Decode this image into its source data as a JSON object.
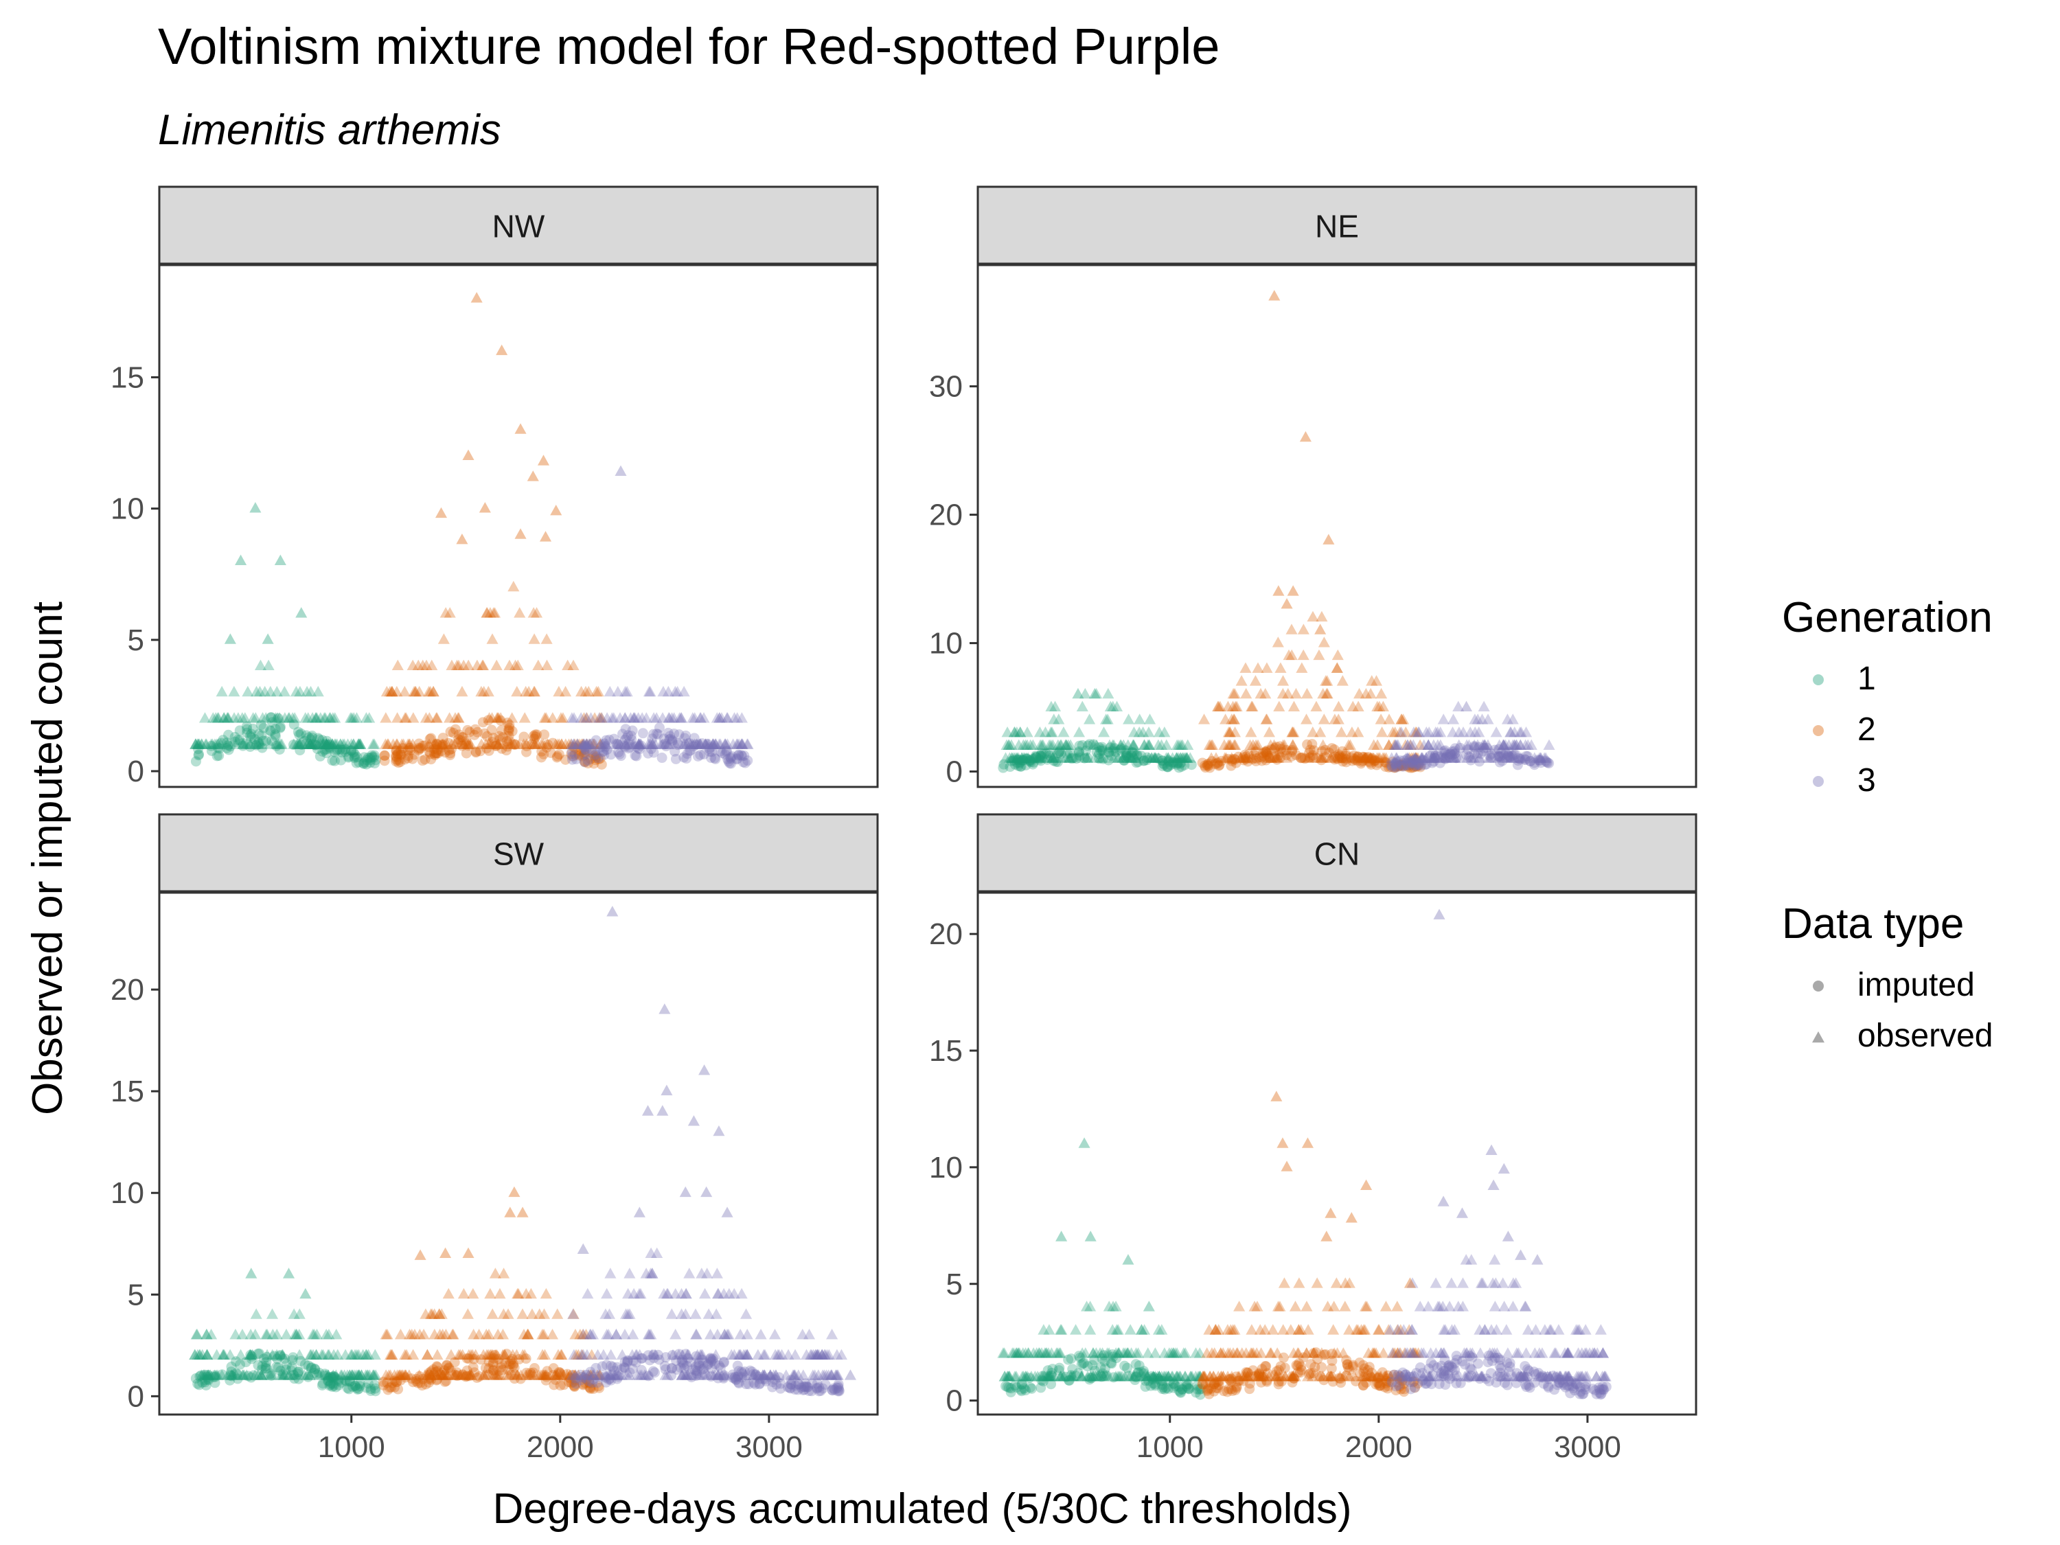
{
  "chart_data": {
    "type": "scatter",
    "title": "Voltinism mixture model for Red-spotted Purple",
    "subtitle": "Limenitis arthemis",
    "xlabel": "Degree-days accumulated (5/30C thresholds)",
    "ylabel": "Observed or imputed count",
    "xlim": [
      80,
      3520
    ],
    "x_ticks": [
      1000,
      2000,
      3000
    ],
    "grid": false,
    "legend_placement": "right",
    "legends": [
      {
        "title": "Generation",
        "entries": [
          {
            "label": "1",
            "color": "#1B9E77"
          },
          {
            "label": "2",
            "color": "#D95F02"
          },
          {
            "label": "3",
            "color": "#7570B3"
          }
        ]
      },
      {
        "title": "Data type",
        "entries": [
          {
            "label": "imputed",
            "shape": "circle"
          },
          {
            "label": "observed",
            "shape": "triangle"
          }
        ]
      }
    ],
    "panels": [
      {
        "name": "NW",
        "ylim": [
          -0.6,
          19.3
        ],
        "y_ticks": [
          0,
          5,
          10,
          15
        ],
        "generations": [
          {
            "gen": "1",
            "range": [
              250,
              1120
            ],
            "peak_x": 620,
            "sd": 200,
            "base": 1.1,
            "amp": 1.9,
            "spread": 0.9
          },
          {
            "gen": "2",
            "range": [
              1150,
              2200
            ],
            "peak_x": 1670,
            "sd": 250,
            "base": 1.0,
            "amp": 4.5,
            "spread": 2.0
          },
          {
            "gen": "3",
            "range": [
              2050,
              2900
            ],
            "peak_x": 2420,
            "sd": 220,
            "base": 0.8,
            "amp": 1.5,
            "spread": 0.8
          }
        ],
        "outliers": [
          {
            "x": 540,
            "y": 10,
            "gen": "1"
          },
          {
            "x": 470,
            "y": 8,
            "gen": "1"
          },
          {
            "x": 660,
            "y": 8,
            "gen": "1"
          },
          {
            "x": 760,
            "y": 6,
            "gen": "1"
          },
          {
            "x": 420,
            "y": 5,
            "gen": "1"
          },
          {
            "x": 600,
            "y": 5,
            "gen": "1"
          },
          {
            "x": 1600,
            "y": 18,
            "gen": "2"
          },
          {
            "x": 1720,
            "y": 16,
            "gen": "2"
          },
          {
            "x": 1810,
            "y": 13,
            "gen": "2"
          },
          {
            "x": 1560,
            "y": 12,
            "gen": "2"
          },
          {
            "x": 1920,
            "y": 11.8,
            "gen": "2"
          },
          {
            "x": 1870,
            "y": 11.2,
            "gen": "2"
          },
          {
            "x": 1640,
            "y": 10,
            "gen": "2"
          },
          {
            "x": 1430,
            "y": 9.8,
            "gen": "2"
          },
          {
            "x": 1980,
            "y": 9.9,
            "gen": "2"
          },
          {
            "x": 1810,
            "y": 9,
            "gen": "2"
          },
          {
            "x": 1930,
            "y": 8.9,
            "gen": "2"
          },
          {
            "x": 1530,
            "y": 8.8,
            "gen": "2"
          },
          {
            "x": 2290,
            "y": 11.4,
            "gen": "3"
          }
        ]
      },
      {
        "name": "NE",
        "ylim": [
          -1.2,
          39.5
        ],
        "y_ticks": [
          0,
          10,
          20,
          30
        ],
        "generations": [
          {
            "gen": "1",
            "range": [
              200,
              1120
            ],
            "peak_x": 620,
            "sd": 210,
            "base": 1.2,
            "amp": 4.2,
            "spread": 1.2
          },
          {
            "gen": "2",
            "range": [
              1150,
              2200
            ],
            "peak_x": 1630,
            "sd": 230,
            "base": 1.2,
            "amp": 9.0,
            "spread": 3.0
          },
          {
            "gen": "3",
            "range": [
              2050,
              2820
            ],
            "peak_x": 2450,
            "sd": 210,
            "base": 1.0,
            "amp": 2.8,
            "spread": 1.0
          }
        ],
        "outliers": [
          {
            "x": 1500,
            "y": 37,
            "gen": "2"
          },
          {
            "x": 1650,
            "y": 26,
            "gen": "2"
          },
          {
            "x": 1760,
            "y": 18,
            "gen": "2"
          },
          {
            "x": 1520,
            "y": 14,
            "gen": "2"
          },
          {
            "x": 1590,
            "y": 14,
            "gen": "2"
          },
          {
            "x": 1560,
            "y": 13,
            "gen": "2"
          },
          {
            "x": 1720,
            "y": 11,
            "gen": "2"
          },
          {
            "x": 640,
            "y": 6,
            "gen": "1"
          },
          {
            "x": 560,
            "y": 6,
            "gen": "1"
          },
          {
            "x": 2420,
            "y": 5,
            "gen": "3"
          }
        ]
      },
      {
        "name": "SW",
        "ylim": [
          -0.9,
          24.8
        ],
        "y_ticks": [
          0,
          5,
          10,
          15,
          20
        ],
        "generations": [
          {
            "gen": "1",
            "range": [
              250,
              1120
            ],
            "peak_x": 600,
            "sd": 210,
            "base": 1.2,
            "amp": 2.6,
            "spread": 1.0
          },
          {
            "gen": "2",
            "range": [
              1150,
              2200
            ],
            "peak_x": 1670,
            "sd": 260,
            "base": 1.2,
            "amp": 3.6,
            "spread": 1.5
          },
          {
            "gen": "3",
            "range": [
              2050,
              3350
            ],
            "peak_x": 2520,
            "sd": 320,
            "base": 1.2,
            "amp": 4.2,
            "spread": 1.8
          }
        ],
        "outliers": [
          {
            "x": 2250,
            "y": 23.8,
            "gen": "3"
          },
          {
            "x": 2500,
            "y": 19,
            "gen": "3"
          },
          {
            "x": 2690,
            "y": 16,
            "gen": "3"
          },
          {
            "x": 2510,
            "y": 15,
            "gen": "3"
          },
          {
            "x": 2420,
            "y": 14,
            "gen": "3"
          },
          {
            "x": 2640,
            "y": 13.5,
            "gen": "3"
          },
          {
            "x": 2760,
            "y": 13,
            "gen": "3"
          },
          {
            "x": 2490,
            "y": 14,
            "gen": "3"
          },
          {
            "x": 2600,
            "y": 10,
            "gen": "3"
          },
          {
            "x": 2700,
            "y": 10,
            "gen": "3"
          },
          {
            "x": 2800,
            "y": 9,
            "gen": "3"
          },
          {
            "x": 2380,
            "y": 9,
            "gen": "3"
          },
          {
            "x": 1780,
            "y": 10,
            "gen": "2"
          },
          {
            "x": 1760,
            "y": 9,
            "gen": "2"
          },
          {
            "x": 1820,
            "y": 9,
            "gen": "2"
          },
          {
            "x": 1450,
            "y": 7,
            "gen": "2"
          },
          {
            "x": 1560,
            "y": 7,
            "gen": "2"
          },
          {
            "x": 1330,
            "y": 6.9,
            "gen": "2"
          },
          {
            "x": 520,
            "y": 6,
            "gen": "1"
          },
          {
            "x": 700,
            "y": 6,
            "gen": "1"
          },
          {
            "x": 780,
            "y": 5,
            "gen": "1"
          },
          {
            "x": 2110,
            "y": 7.2,
            "gen": "3"
          },
          {
            "x": 3390,
            "y": 1,
            "gen": "3"
          }
        ]
      },
      {
        "name": "CN",
        "ylim": [
          -0.6,
          21.8
        ],
        "y_ticks": [
          0,
          5,
          10,
          15,
          20
        ],
        "generations": [
          {
            "gen": "1",
            "range": [
              200,
              1150
            ],
            "peak_x": 650,
            "sd": 210,
            "base": 1.1,
            "amp": 2.0,
            "spread": 0.9
          },
          {
            "gen": "2",
            "range": [
              1150,
              2200
            ],
            "peak_x": 1700,
            "sd": 270,
            "base": 1.1,
            "amp": 3.2,
            "spread": 1.5
          },
          {
            "gen": "3",
            "range": [
              2050,
              3100
            ],
            "peak_x": 2450,
            "sd": 280,
            "base": 1.0,
            "amp": 3.5,
            "spread": 1.5
          }
        ],
        "outliers": [
          {
            "x": 2290,
            "y": 20.8,
            "gen": "3"
          },
          {
            "x": 2540,
            "y": 10.7,
            "gen": "3"
          },
          {
            "x": 2600,
            "y": 9.9,
            "gen": "3"
          },
          {
            "x": 2550,
            "y": 9.2,
            "gen": "3"
          },
          {
            "x": 2310,
            "y": 8.5,
            "gen": "3"
          },
          {
            "x": 2400,
            "y": 8,
            "gen": "3"
          },
          {
            "x": 2620,
            "y": 7,
            "gen": "3"
          },
          {
            "x": 2760,
            "y": 6,
            "gen": "3"
          },
          {
            "x": 2680,
            "y": 6.2,
            "gen": "3"
          },
          {
            "x": 1510,
            "y": 13,
            "gen": "2"
          },
          {
            "x": 1540,
            "y": 11,
            "gen": "2"
          },
          {
            "x": 1660,
            "y": 11,
            "gen": "2"
          },
          {
            "x": 1560,
            "y": 10,
            "gen": "2"
          },
          {
            "x": 1940,
            "y": 9.2,
            "gen": "2"
          },
          {
            "x": 1770,
            "y": 8,
            "gen": "2"
          },
          {
            "x": 1870,
            "y": 7.8,
            "gen": "2"
          },
          {
            "x": 1750,
            "y": 7,
            "gen": "2"
          },
          {
            "x": 2150,
            "y": 5,
            "gen": "2"
          },
          {
            "x": 590,
            "y": 11,
            "gen": "1"
          },
          {
            "x": 480,
            "y": 7,
            "gen": "1"
          },
          {
            "x": 620,
            "y": 7,
            "gen": "1"
          },
          {
            "x": 800,
            "y": 6,
            "gen": "1"
          },
          {
            "x": 900,
            "y": 4,
            "gen": "1"
          }
        ]
      }
    ]
  }
}
